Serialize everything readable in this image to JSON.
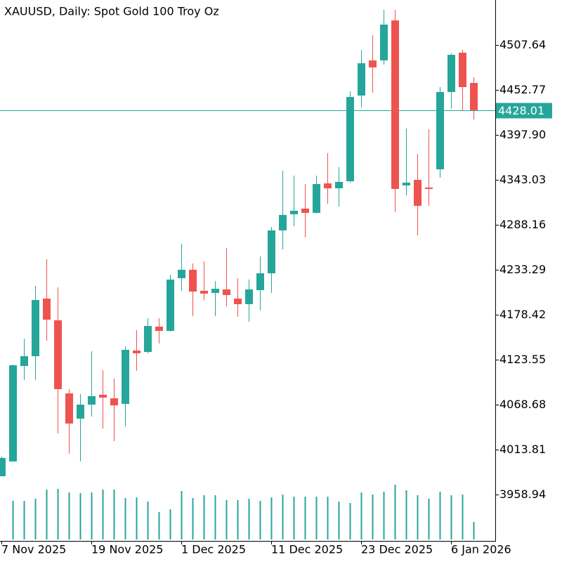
{
  "chart_data": {
    "type": "candlestick",
    "title": "XAUUSD, Daily:  Spot Gold 100 Troy Oz",
    "categories": [
      "7 Nov 2025",
      null,
      null,
      null,
      null,
      null,
      null,
      null,
      "19 Nov 2025",
      null,
      null,
      null,
      null,
      null,
      null,
      null,
      "1 Dec 2025",
      null,
      null,
      null,
      null,
      null,
      null,
      null,
      "11 Dec 2025",
      null,
      null,
      null,
      null,
      null,
      null,
      null,
      "23 Dec 2025",
      null,
      null,
      null,
      null,
      null,
      null,
      null,
      "6 Jan 2026",
      null,
      null
    ],
    "open": [
      3981.3,
      3999.3,
      4115.8,
      4127.8,
      4198.1,
      4171.6,
      4082.4,
      4051.6,
      4068.7,
      4080.7,
      4076.4,
      4069.6,
      4134.7,
      4133.0,
      4163.9,
      4158.7,
      4223.0,
      4233.3,
      4207.6,
      4205.0,
      4209.3,
      4198.1,
      4191.3,
      4208.4,
      4229.0,
      4281.3,
      4301.0,
      4307.9,
      4302.7,
      4338.7,
      4332.7,
      4341.3,
      4445.9,
      4488.8,
      4488.8,
      4537.6,
      4336.2,
      4343.0,
      4333.6,
      4355.9,
      4450.2,
      4498.2,
      4461.3
    ],
    "high": [
      4005.3,
      4117.6,
      4149.3,
      4213.6,
      4246.2,
      4211.9,
      4087.6,
      4081.6,
      4133.8,
      4110.7,
      4100.4,
      4139.9,
      4159.6,
      4174.1,
      4174.1,
      4227.3,
      4265.0,
      4241.0,
      4243.6,
      4219.6,
      4259.9,
      4223.0,
      4221.3,
      4249.6,
      4285.6,
      4354.2,
      4348.2,
      4337.9,
      4348.2,
      4375.6,
      4358.5,
      4451.1,
      4501.6,
      4519.6,
      4550.5,
      4550.5,
      4405.6,
      4374.8,
      4404.8,
      4456.2,
      4497.3,
      4501.6,
      4468.2
    ],
    "low": [
      3981.3,
      3999.3,
      4098.7,
      4098.7,
      4146.7,
      4033.5,
      4008.7,
      3999.3,
      4054.1,
      4039.5,
      4024.1,
      4042.1,
      4109.8,
      4131.3,
      4143.3,
      4157.9,
      4207.6,
      4176.7,
      4196.4,
      4176.7,
      4188.7,
      4175.9,
      4169.9,
      4183.6,
      4205.0,
      4258.2,
      4286.4,
      4272.7,
      4301.9,
      4313.9,
      4310.5,
      4339.6,
      4431.3,
      4449.3,
      4483.6,
      4303.6,
      4324.2,
      4275.3,
      4311.3,
      4345.6,
      4429.6,
      4427.0,
      4416.8
    ],
    "close": [
      4003.6,
      4116.7,
      4127.8,
      4196.4,
      4172.4,
      4087.6,
      4045.6,
      4068.7,
      4079.0,
      4077.3,
      4067.8,
      4135.6,
      4131.3,
      4164.7,
      4158.7,
      4221.3,
      4233.3,
      4206.7,
      4204.2,
      4210.1,
      4202.4,
      4191.3,
      4209.3,
      4229.0,
      4281.3,
      4300.2,
      4305.3,
      4302.7,
      4337.9,
      4332.7,
      4340.5,
      4444.2,
      4485.3,
      4480.2,
      4532.5,
      4331.9,
      4339.6,
      4311.3,
      4331.9,
      4450.2,
      4495.6,
      4456.2,
      4428.01
    ],
    "volume": [
      null,
      55,
      55,
      58,
      71,
      72,
      67,
      66,
      67,
      71,
      71,
      59,
      60,
      54,
      39,
      43,
      69,
      59,
      63,
      63,
      56,
      56,
      58,
      55,
      60,
      64,
      61,
      61,
      61,
      61,
      54,
      52,
      67,
      64,
      68,
      78,
      70,
      63,
      58,
      68,
      63,
      64,
      25
    ],
    "current_price": 4428.01,
    "ylim": [
      3904.07,
      4562.51
    ],
    "yticks": [
      4507.64,
      4452.77,
      {
        "value": 4397.9,
        "label": "4397.90"
      },
      4343.03,
      4288.16,
      4233.29,
      4178.42,
      4123.55,
      4068.68,
      4013.81,
      3958.94
    ],
    "up_color": "#26a69a",
    "down_color": "#ef5350",
    "volume_color": "#26a69a"
  }
}
